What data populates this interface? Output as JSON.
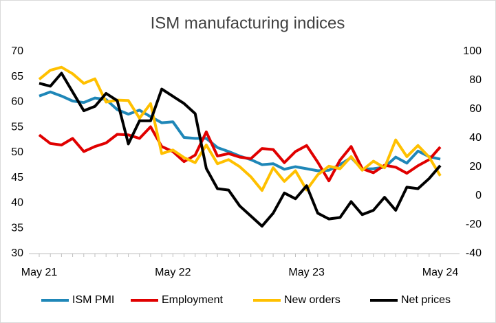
{
  "chart_data": {
    "type": "line",
    "title": "ISM manufacturing indices",
    "categories": [
      "May 21",
      null,
      null,
      null,
      null,
      null,
      null,
      null,
      null,
      null,
      null,
      null,
      "May 22",
      null,
      null,
      null,
      null,
      null,
      null,
      null,
      null,
      null,
      null,
      null,
      "May 23",
      null,
      null,
      null,
      null,
      null,
      null,
      null,
      null,
      null,
      null,
      null,
      "May 24"
    ],
    "ylim": [
      30,
      70
    ],
    "yticks": [
      30,
      35,
      40,
      45,
      50,
      55,
      60,
      65,
      70
    ],
    "y2lim": [
      -40,
      100
    ],
    "y2ticks": [
      -40,
      -20,
      0,
      20,
      40,
      60,
      80,
      100
    ],
    "grid": false,
    "legend": "bottom",
    "series": [
      {
        "name": "ISM PMI",
        "color": "#1f87b8",
        "values": [
          61.2,
          62.0,
          61.2,
          60.2,
          59.9,
          60.8,
          60.5,
          58.5,
          57.6,
          58.4,
          57.1,
          55.9,
          56.1,
          53.0,
          52.8,
          52.8,
          51.0,
          50.2,
          49.3,
          48.6,
          47.6,
          47.8,
          46.7,
          47.2,
          46.8,
          46.4,
          46.5,
          47.6,
          49.0,
          46.7,
          46.8,
          47.1,
          49.1,
          47.9,
          50.3,
          49.2,
          48.7
        ]
      },
      {
        "name": "Employment",
        "color": "#e00000",
        "values": [
          53.5,
          51.8,
          51.5,
          52.8,
          50.2,
          51.2,
          51.9,
          53.6,
          53.5,
          52.8,
          55.1,
          51.2,
          50.2,
          48.2,
          49.5,
          54.1,
          49.3,
          49.8,
          49.1,
          48.8,
          50.8,
          50.6,
          48.0,
          50.2,
          51.4,
          48.1,
          44.4,
          48.5,
          51.2,
          46.8,
          46.0,
          47.5,
          47.1,
          45.9,
          47.4,
          48.6,
          51.1
        ]
      },
      {
        "name": "New orders",
        "color": "#ffc000",
        "values": [
          64.5,
          66.3,
          66.9,
          65.6,
          63.7,
          64.6,
          60.0,
          60.4,
          60.3,
          56.8,
          59.7,
          49.8,
          50.5,
          49.0,
          48.0,
          51.5,
          47.8,
          48.6,
          47.2,
          45.2,
          42.5,
          47.0,
          44.3,
          46.4,
          42.6,
          45.6,
          47.3,
          46.8,
          49.2,
          46.5,
          48.3,
          47.0,
          52.5,
          49.2,
          51.4,
          49.1,
          45.4
        ]
      },
      {
        "name": "Net prices",
        "color": "#000000",
        "axis": "y2",
        "values": [
          78,
          76,
          85,
          72,
          59,
          62,
          71,
          66,
          36,
          52,
          52,
          74,
          69,
          64,
          57,
          19,
          5,
          4,
          -7,
          -14,
          -21,
          -12,
          2,
          -2,
          7,
          -12,
          -16,
          -15,
          -4,
          -13,
          -10,
          -1,
          -10,
          6,
          5,
          12,
          21
        ]
      }
    ]
  }
}
